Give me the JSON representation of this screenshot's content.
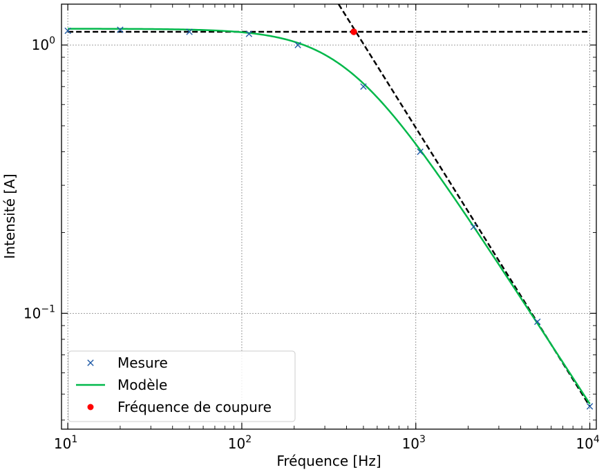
{
  "chart_data": {
    "type": "line",
    "xlabel": "Fréquence [Hz]",
    "ylabel": "Intensité [A]",
    "xscale": "log",
    "yscale": "log",
    "xlim": [
      9.2,
      10900
    ],
    "ylim": [
      0.037,
      1.42
    ],
    "grid": true,
    "legend_position": "lower-left",
    "x_ticks": [
      {
        "value": 10,
        "base": "10",
        "exp": "1"
      },
      {
        "value": 100,
        "base": "10",
        "exp": "2"
      },
      {
        "value": 1000,
        "base": "10",
        "exp": "3"
      },
      {
        "value": 10000,
        "base": "10",
        "exp": "4"
      }
    ],
    "y_ticks": [
      {
        "value": 1.0,
        "base": "10",
        "exp": "0"
      },
      {
        "value": 0.1,
        "base": "10",
        "exp": "−1"
      }
    ],
    "series": [
      {
        "name": "Mesure",
        "kind": "marker-x",
        "color": "#1f5aa6",
        "x": [
          10,
          20,
          50,
          110,
          210,
          500,
          1060,
          2150,
          5000,
          10000
        ],
        "y": [
          1.13,
          1.14,
          1.12,
          1.1,
          1.0,
          0.7,
          0.4,
          0.21,
          0.093,
          0.045
        ]
      },
      {
        "name": "Modèle",
        "kind": "line",
        "color": "#00b84a",
        "model": {
          "i0": 1.15,
          "fc": 400
        }
      },
      {
        "name": "Fréquence de coupure",
        "kind": "marker-dot",
        "color": "#ff0000",
        "x": [
          440
        ],
        "y": [
          1.12
        ]
      }
    ],
    "asymptotes": [
      {
        "kind": "horizontal",
        "color": "#000000",
        "y": 1.12,
        "x": [
          10,
          10000
        ]
      },
      {
        "kind": "oblique",
        "color": "#000000",
        "x": [
          360,
          10000
        ],
        "y": [
          1.42,
          0.045
        ]
      }
    ]
  }
}
